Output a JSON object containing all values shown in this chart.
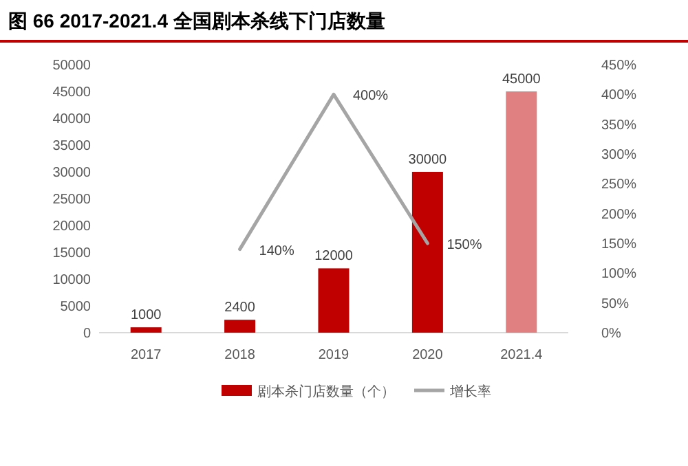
{
  "chart_data": {
    "type": "bar",
    "title": "图 66 2017-2021.4 全国剧本杀线下门店数量",
    "categories": [
      "2017",
      "2018",
      "2019",
      "2020",
      "2021.4"
    ],
    "series": [
      {
        "name": "剧本杀门店数量（个）",
        "color": "#c00000",
        "colors": [
          "#c00000",
          "#c00000",
          "#c00000",
          "#c00000",
          "#e08080"
        ],
        "values": [
          1000,
          2400,
          12000,
          30000,
          45000
        ],
        "value_labels": [
          "1000",
          "2400",
          "12000",
          "30000",
          "45000"
        ]
      },
      {
        "name": "增长率",
        "type": "line",
        "axis": "y2",
        "color": "#a5a5a5",
        "values": [
          null,
          140,
          400,
          150,
          null
        ],
        "value_labels": [
          null,
          "140%",
          "400%",
          "150%",
          null
        ]
      }
    ],
    "ylim": [
      0,
      50000
    ],
    "yticks": [
      0,
      5000,
      10000,
      15000,
      20000,
      25000,
      30000,
      35000,
      40000,
      45000,
      50000
    ],
    "y2lim": [
      0,
      450
    ],
    "y2ticks": [
      {
        "value": 0,
        "label": "0%"
      },
      {
        "value": 50,
        "label": "50%"
      },
      {
        "value": 100,
        "label": "100%"
      },
      {
        "value": 150,
        "label": "150%"
      },
      {
        "value": 200,
        "label": "200%"
      },
      {
        "value": 250,
        "label": "250%"
      },
      {
        "value": 300,
        "label": "300%"
      },
      {
        "value": 350,
        "label": "350%"
      },
      {
        "value": 400,
        "label": "400%"
      },
      {
        "value": 450,
        "label": "450%"
      }
    ],
    "grid": false,
    "legend": "bottom",
    "marker": "none",
    "line_style": "solid"
  }
}
